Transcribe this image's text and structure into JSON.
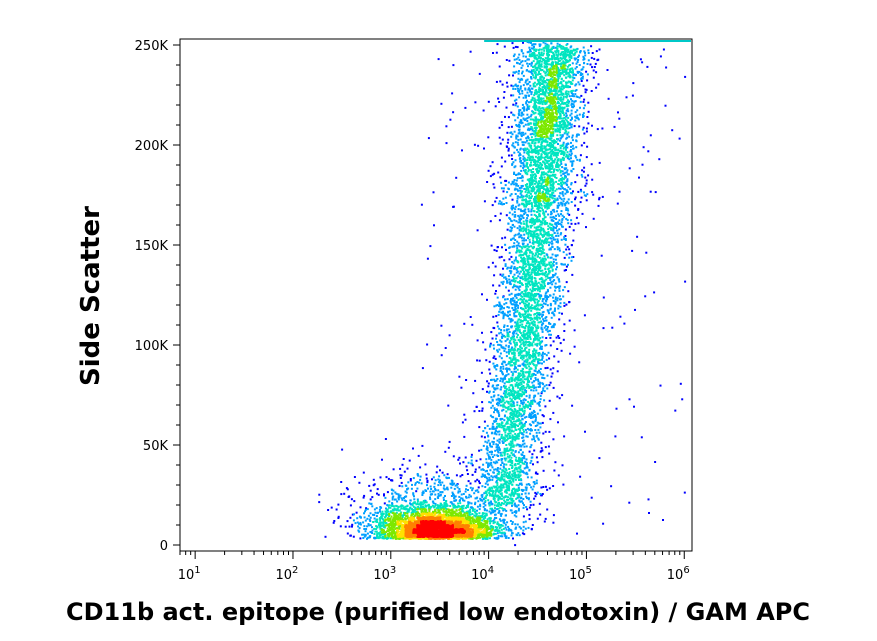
{
  "chart_data": {
    "type": "scatter",
    "subtype": "flow-cytometry density dot plot",
    "title": "",
    "xlabel": "CD11b act. epitope (purified low endotoxin) / GAM APC",
    "ylabel": "Side Scatter",
    "x_scale": "log",
    "xlim": [
      7,
      1200000
    ],
    "ylim": [
      -3000,
      253000
    ],
    "x_ticks": [
      {
        "base": "10",
        "exp": "1",
        "value": 10
      },
      {
        "base": "10",
        "exp": "2",
        "value": 100
      },
      {
        "base": "10",
        "exp": "3",
        "value": 1000
      },
      {
        "base": "10",
        "exp": "4",
        "value": 10000
      },
      {
        "base": "10",
        "exp": "5",
        "value": 100000
      },
      {
        "base": "10",
        "exp": "6",
        "value": 1000000
      }
    ],
    "y_ticks": [
      {
        "label": "0",
        "value": 0
      },
      {
        "label": "50K",
        "value": 50000
      },
      {
        "label": "100K",
        "value": 100000
      },
      {
        "label": "150K",
        "value": 150000
      },
      {
        "label": "200K",
        "value": 200000
      },
      {
        "label": "250K",
        "value": 250000
      }
    ],
    "density_colors": [
      "#0000ff",
      "#00a0ff",
      "#00e5c0",
      "#7de800",
      "#ffe000",
      "#ff8000",
      "#ff0000"
    ],
    "populations": [
      {
        "role": "main-population",
        "center_x": 3500,
        "center_y": 4000,
        "density": "highest"
      },
      {
        "role": "high-side-scatter-population",
        "center_x": 25000,
        "center_y": 90000,
        "density": "medium"
      },
      {
        "role": "saturated-events",
        "x_range": [
          9000,
          1000000
        ],
        "y": 251000,
        "density": "line"
      }
    ],
    "grid": false,
    "legend": "none"
  }
}
